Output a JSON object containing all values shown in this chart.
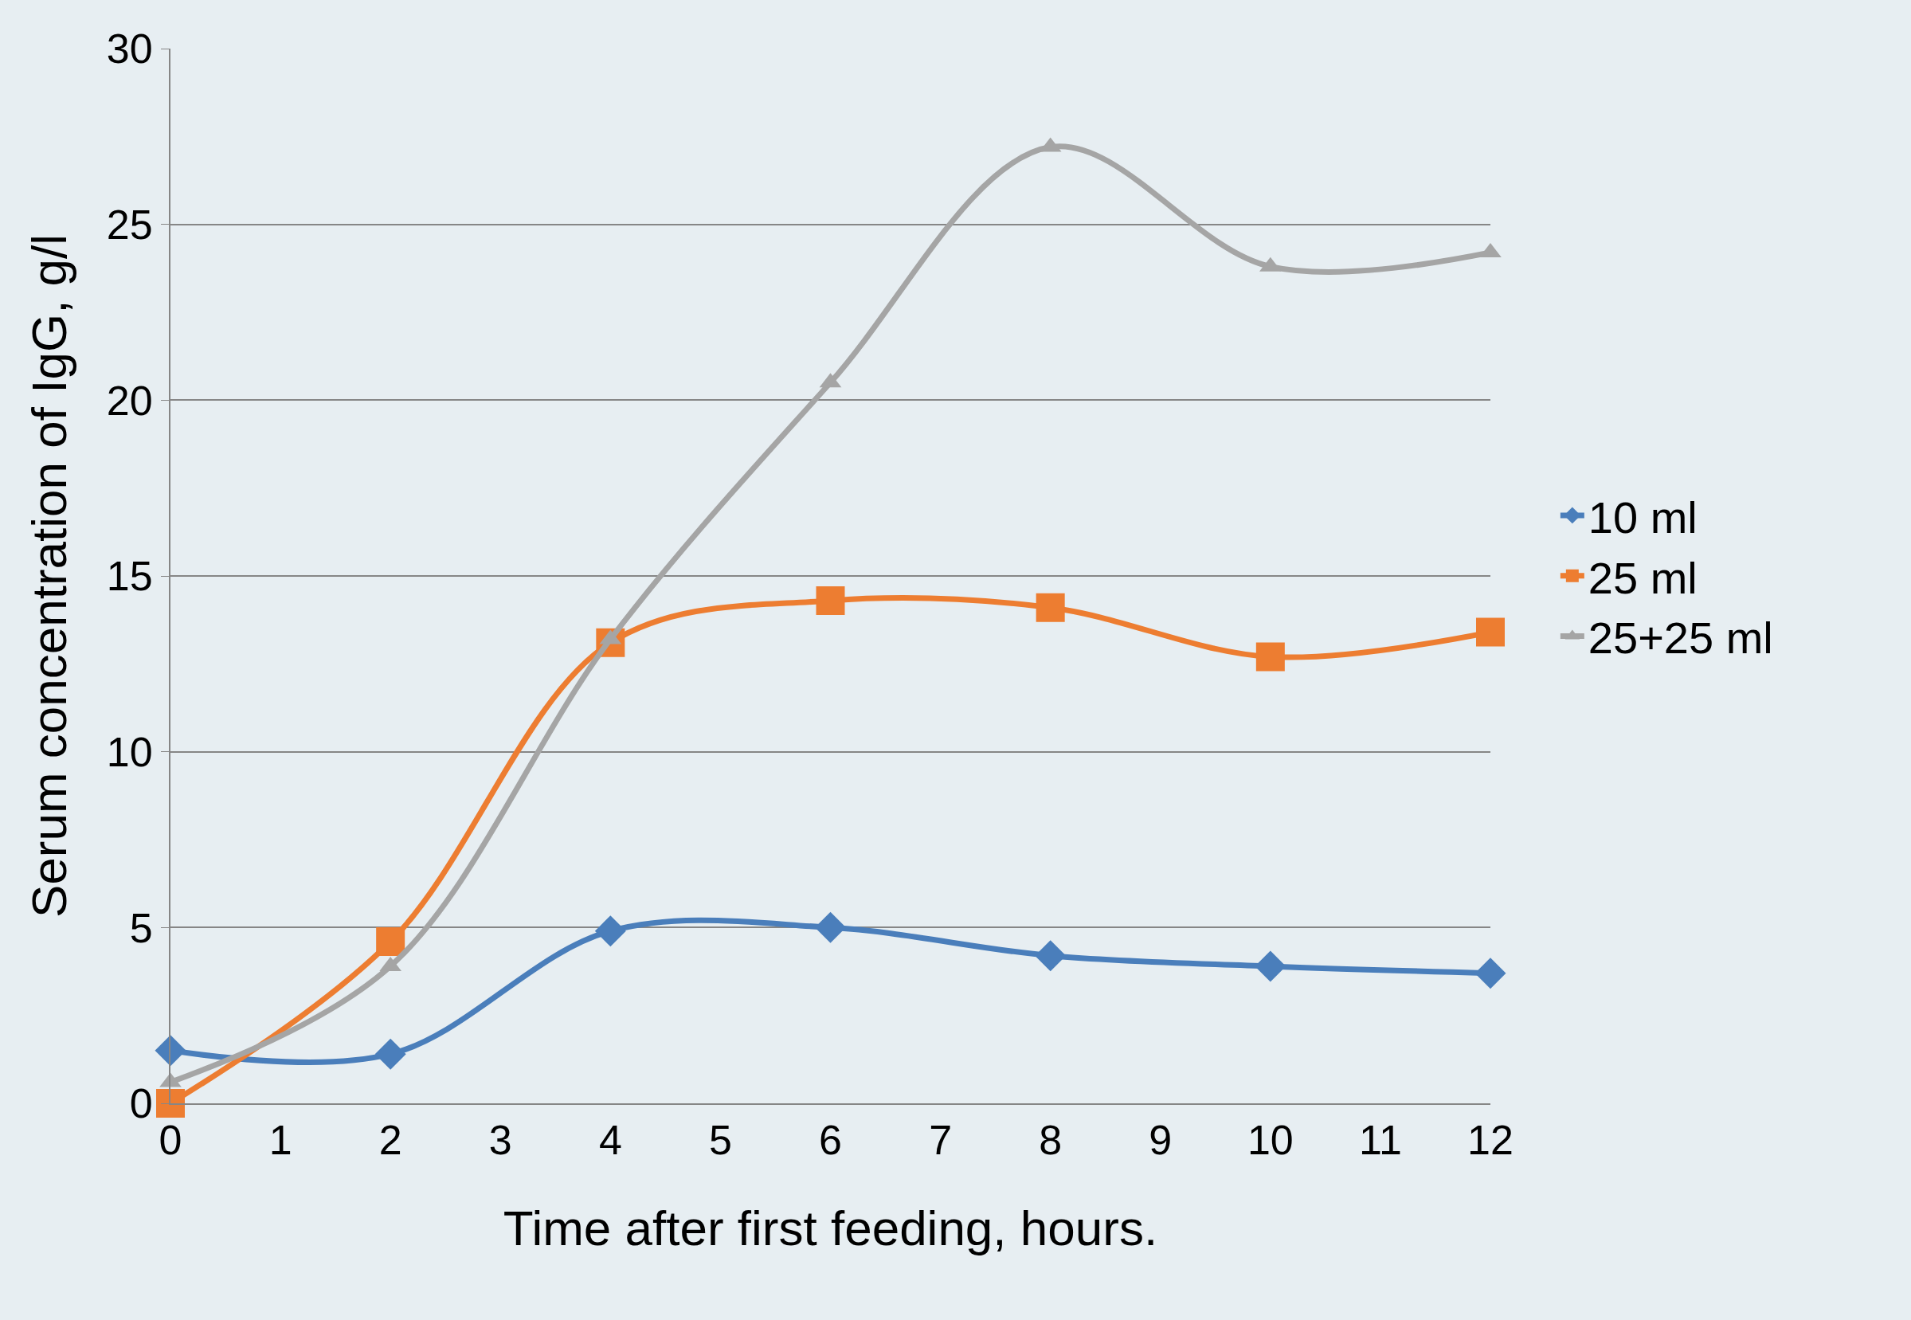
{
  "chart_data": {
    "type": "line",
    "xlabel": "Time after first feeding, hours.",
    "ylabel": "Serum concentration of IgG, g/l",
    "x": [
      0,
      2,
      4,
      6,
      8,
      10,
      12
    ],
    "series": [
      {
        "name": "10 ml",
        "color": "#4a7ebb",
        "marker": "diamond",
        "values": [
          1.5,
          1.4,
          4.9,
          5.0,
          4.2,
          3.9,
          3.7
        ]
      },
      {
        "name": "25 ml",
        "color": "#ed7d31",
        "marker": "square",
        "values": [
          0,
          4.6,
          13.1,
          14.3,
          14.1,
          12.7,
          13.4
        ]
      },
      {
        "name": "25+25 ml",
        "color": "#a5a5a5",
        "marker": "triangle",
        "values": [
          0.6,
          3.9,
          13.2,
          20.5,
          27.2,
          23.8,
          24.2
        ]
      }
    ],
    "xlim": [
      0,
      12
    ],
    "xticks": [
      0,
      1,
      2,
      3,
      4,
      5,
      6,
      7,
      8,
      9,
      10,
      11,
      12
    ],
    "ylim": [
      0,
      30
    ],
    "yticks": [
      0,
      5,
      10,
      15,
      20,
      25,
      30
    ],
    "grid": "y",
    "legend": "right"
  }
}
